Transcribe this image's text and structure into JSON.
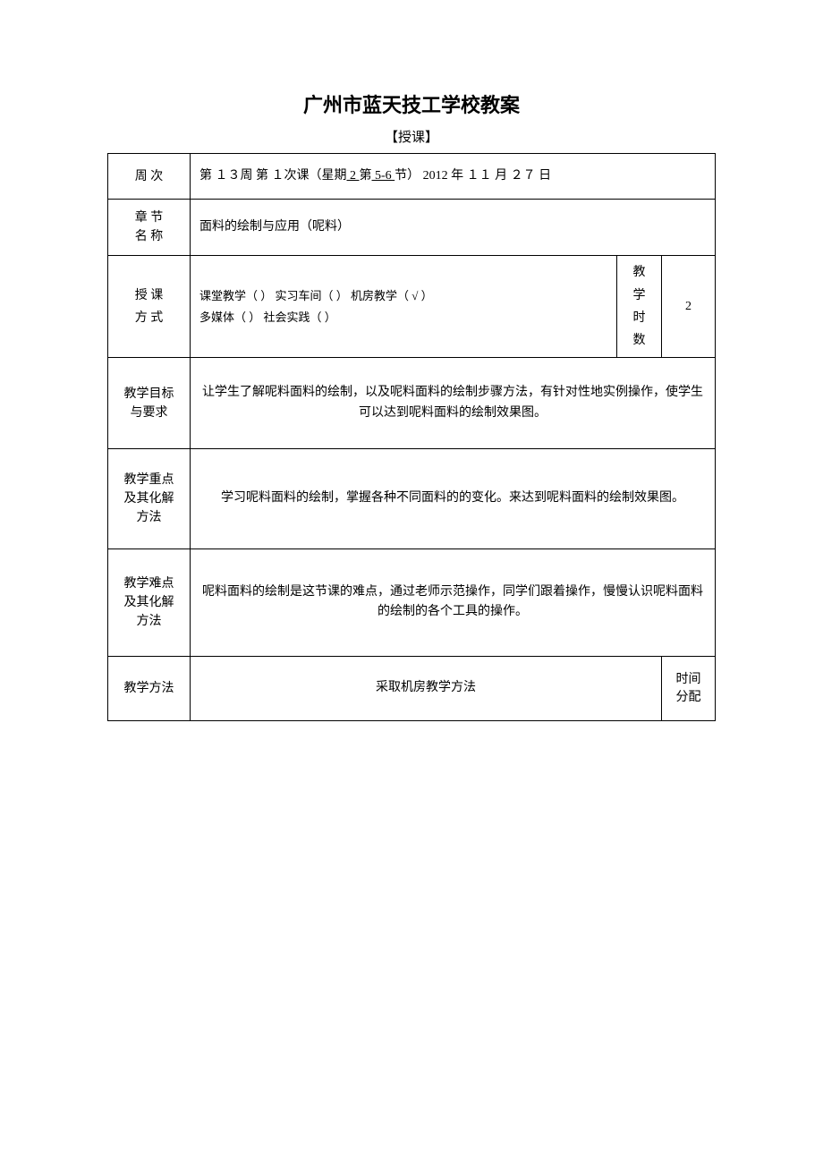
{
  "document": {
    "title": "广州市蓝天技工学校教案",
    "subtitle": "【授课】",
    "colors": {
      "text": "#000000",
      "background": "#ffffff",
      "border": "#000000"
    }
  },
  "rows": {
    "week": {
      "label": "周 次",
      "prefix": "第 １３周 第 １次课（星期",
      "day": " 2 ",
      "mid": " 第",
      "period": " 5-6 ",
      "suffix": "节） 2012 年 １１ 月 ２７  日"
    },
    "chapter": {
      "label": "章 节\n名 称",
      "value": "面料的绘制与应用（呢料）"
    },
    "mode": {
      "label": "授 课\n方 式",
      "value_line1": "课堂教学（  ） 实习车间（  ） 机房教学（ √ ）",
      "value_line2": "多媒体（  ） 社会实践（  ）",
      "hours_label": "教  学\n时  数",
      "hours_value": "2"
    },
    "objective": {
      "label": "教学目标与要求",
      "value": "让学生了解呢料面料的绘制，以及呢料面料的绘制步骤方法，有针对性地实例操作，使学生可以达到呢料面料的绘制效果图。"
    },
    "keypoint": {
      "label": "教学重点及其化解方法",
      "value": "学习呢料面料的绘制，掌握各种不同面料的的变化。来达到呢料面料的绘制效果图。"
    },
    "difficulty": {
      "label": "教学难点及其化解方法",
      "value": "呢料面料的绘制是这节课的难点，通过老师示范操作，同学们跟着操作，慢慢认识呢料面料的绘制的各个工具的操作。"
    },
    "method": {
      "label": "教学方法",
      "value": "采取机房教学方法",
      "time_label": "时间\n分配"
    }
  }
}
